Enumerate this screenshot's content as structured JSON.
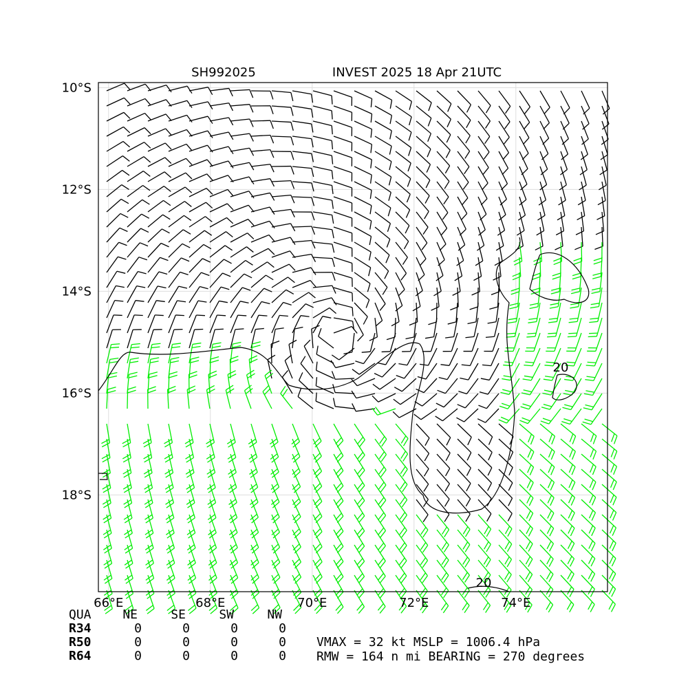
{
  "map": {
    "title_left": "SH992025",
    "title_right": "INVEST 2025 18 Apr 21UTC",
    "lon_range": [
      65.8,
      75.8
    ],
    "lat_range": [
      -9.9,
      -19.9
    ],
    "lon_ticks": [
      {
        "value": 66,
        "label": "66°E"
      },
      {
        "value": 68,
        "label": "68°E"
      },
      {
        "value": 70,
        "label": "70°E"
      },
      {
        "value": 72,
        "label": "72°E"
      },
      {
        "value": 74,
        "label": "74°E"
      }
    ],
    "lat_ticks": [
      {
        "value": -10,
        "label": "10°S"
      },
      {
        "value": -12,
        "label": "12°S"
      },
      {
        "value": -14,
        "label": "14°S"
      },
      {
        "value": -16,
        "label": "16°S"
      },
      {
        "value": -18,
        "label": "18°S"
      }
    ],
    "contour_labels": [
      "20",
      "20"
    ]
  },
  "table": {
    "header": [
      "QUA",
      "NE",
      "SE",
      "SW",
      "NW"
    ],
    "rows": [
      [
        "R34",
        "0",
        "0",
        "0",
        "0"
      ],
      [
        "R50",
        "0",
        "0",
        "0",
        "0"
      ],
      [
        "R64",
        "0",
        "0",
        "0",
        "0"
      ]
    ]
  },
  "stats": [
    "VMAX =  32 kt MSLP = 1006.4 hPa",
    "RMW = 164 n mi BEARING = 270 degrees"
  ]
}
